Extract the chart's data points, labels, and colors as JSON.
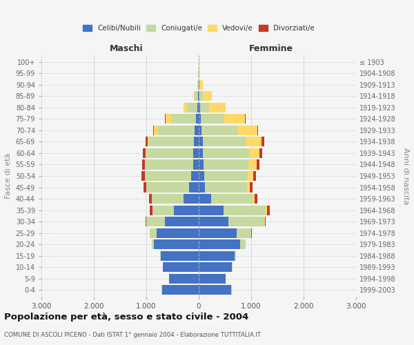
{
  "age_groups": [
    "0-4",
    "5-9",
    "10-14",
    "15-19",
    "20-24",
    "25-29",
    "30-34",
    "35-39",
    "40-44",
    "45-49",
    "50-54",
    "55-59",
    "60-64",
    "65-69",
    "70-74",
    "75-79",
    "80-84",
    "85-89",
    "90-94",
    "95-99",
    "100+"
  ],
  "birth_years": [
    "1999-2003",
    "1994-1998",
    "1989-1993",
    "1984-1988",
    "1979-1983",
    "1974-1978",
    "1969-1973",
    "1964-1968",
    "1959-1963",
    "1954-1958",
    "1949-1953",
    "1944-1948",
    "1939-1943",
    "1934-1938",
    "1929-1933",
    "1924-1928",
    "1919-1923",
    "1914-1918",
    "1909-1913",
    "1904-1908",
    "≤ 1903"
  ],
  "male": {
    "celibi": [
      700,
      560,
      680,
      720,
      850,
      800,
      650,
      480,
      290,
      180,
      150,
      110,
      100,
      95,
      80,
      50,
      30,
      15,
      5,
      3,
      2
    ],
    "coniugati": [
      5,
      5,
      10,
      15,
      40,
      130,
      350,
      400,
      600,
      820,
      870,
      900,
      900,
      850,
      700,
      480,
      200,
      60,
      15,
      5,
      2
    ],
    "vedovi": [
      0,
      0,
      0,
      0,
      2,
      2,
      2,
      2,
      3,
      5,
      8,
      10,
      15,
      30,
      80,
      100,
      60,
      20,
      8,
      2,
      0
    ],
    "divorziati": [
      0,
      0,
      0,
      0,
      2,
      5,
      15,
      50,
      50,
      50,
      60,
      55,
      50,
      40,
      15,
      10,
      5,
      0,
      0,
      0,
      0
    ]
  },
  "female": {
    "nubili": [
      620,
      510,
      630,
      680,
      790,
      720,
      570,
      480,
      240,
      120,
      100,
      90,
      85,
      75,
      55,
      35,
      20,
      15,
      8,
      3,
      2
    ],
    "coniugate": [
      5,
      5,
      10,
      30,
      100,
      280,
      680,
      800,
      780,
      800,
      840,
      860,
      870,
      820,
      680,
      450,
      180,
      70,
      20,
      5,
      2
    ],
    "vedove": [
      0,
      0,
      0,
      2,
      3,
      5,
      10,
      20,
      40,
      60,
      100,
      150,
      200,
      300,
      380,
      400,
      310,
      170,
      50,
      10,
      3
    ],
    "divorziate": [
      0,
      0,
      0,
      0,
      2,
      5,
      15,
      60,
      60,
      50,
      55,
      55,
      60,
      50,
      20,
      15,
      5,
      0,
      0,
      0,
      0
    ]
  },
  "colors": {
    "celibi": "#4472c4",
    "coniugati": "#c5d9a0",
    "vedovi": "#ffd966",
    "divorziati": "#c0392b"
  },
  "title": "Popolazione per età, sesso e stato civile - 2004",
  "subtitle": "COMUNE DI ASCOLI PICENO - Dati ISTAT 1° gennaio 2004 - Elaborazione TUTTITALIA.IT",
  "label_maschi": "Maschi",
  "label_femmine": "Femmine",
  "ylabel_left": "Fasce di età",
  "ylabel_right": "Anni di nascita",
  "xlim": 3000,
  "xticks": [
    -3000,
    -2000,
    -1000,
    0,
    1000,
    2000,
    3000
  ],
  "background_color": "#f5f5f5",
  "grid_color": "#cccccc",
  "bar_height": 0.85
}
